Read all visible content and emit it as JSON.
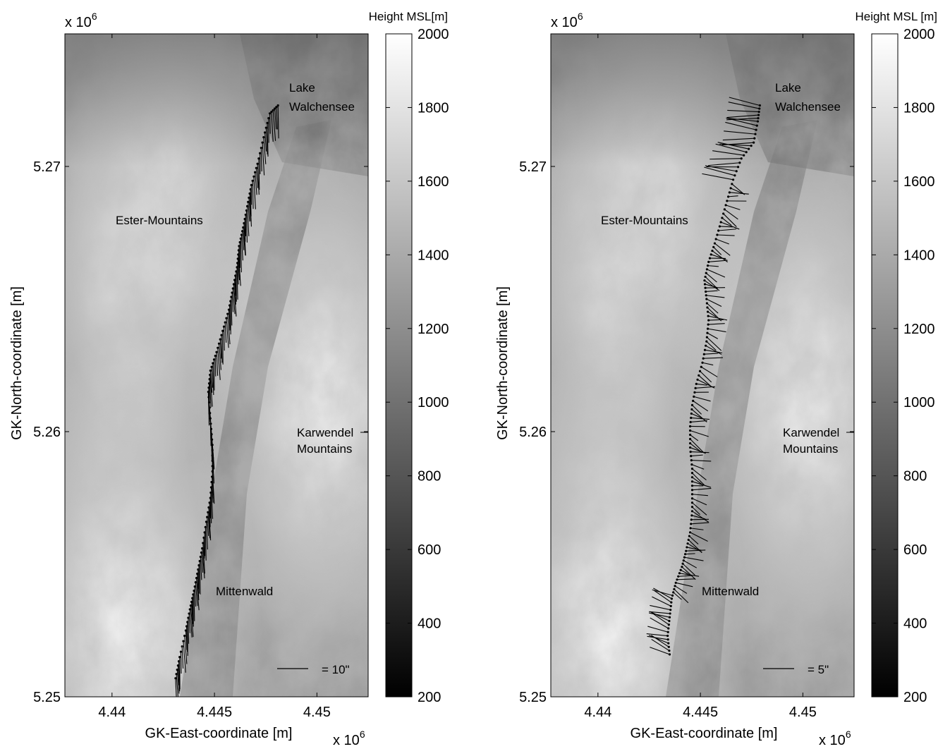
{
  "colorbar_title": "Height MSL[m]",
  "colorbar_title_right": "Height MSL [m]",
  "x_multiplier": "x 10",
  "multiplier_exp": "6",
  "chart_data": [
    {
      "type": "scatter",
      "title": "",
      "xlabel": "GK-East-coordinate [m]",
      "ylabel": "GK-North-coordinate [m]",
      "x_multiplier": "x 10^6",
      "y_multiplier": "x 10^6",
      "xlim": [
        4.4377,
        4.4525
      ],
      "ylim": [
        5.25,
        5.275
      ],
      "x_ticks": [
        4.44,
        4.445,
        4.45
      ],
      "x_tick_labels": [
        "4.44",
        "4.445",
        "4.45"
      ],
      "y_ticks": [
        5.25,
        5.26,
        5.27
      ],
      "y_tick_labels": [
        "5.25",
        "5.26",
        "5.27"
      ],
      "background": "grayscale digital elevation model",
      "colorbar": {
        "label": "Height MSL[m]",
        "min": 200,
        "max": 2000,
        "ticks": [
          200,
          400,
          600,
          800,
          1000,
          1200,
          1400,
          1600,
          1800,
          2000
        ],
        "tick_labels": [
          "200",
          "400",
          "600",
          "800",
          "1000",
          "1200",
          "1400",
          "1600",
          "1800",
          "2000"
        ]
      },
      "annotations": [
        "Lake",
        "Walchensee",
        "Ester-Mountains",
        "Karwendel",
        "Mountains",
        "Mittenwald"
      ],
      "scale_label": "= 10\"",
      "track": [
        [
          4.4431,
          5.2507
        ],
        [
          4.4433,
          5.2515
        ],
        [
          4.4436,
          5.2525
        ],
        [
          4.4438,
          5.2533
        ],
        [
          4.444,
          5.254
        ],
        [
          4.4442,
          5.2548
        ],
        [
          4.4444,
          5.2556
        ],
        [
          4.4446,
          5.2566
        ],
        [
          4.4448,
          5.2575
        ],
        [
          4.4449,
          5.2585
        ],
        [
          4.4449,
          5.2595
        ],
        [
          4.4448,
          5.2605
        ],
        [
          4.4447,
          5.2615
        ],
        [
          4.4448,
          5.2623
        ],
        [
          4.4451,
          5.263
        ],
        [
          4.4454,
          5.2638
        ],
        [
          4.4457,
          5.2646
        ],
        [
          4.4459,
          5.2654
        ],
        [
          4.4461,
          5.2662
        ],
        [
          4.4462,
          5.267
        ],
        [
          4.4464,
          5.2677
        ],
        [
          4.4466,
          5.2685
        ],
        [
          4.4468,
          5.2693
        ],
        [
          4.4471,
          5.2701
        ],
        [
          4.4474,
          5.2711
        ],
        [
          4.4477,
          5.272
        ],
        [
          4.4481,
          5.2723
        ]
      ],
      "vector_color": "#000000"
    },
    {
      "type": "scatter",
      "title": "",
      "xlabel": "GK-East-coordinate [m]",
      "ylabel": "GK-North-coordinate [m]",
      "x_multiplier": "x 10^6",
      "y_multiplier": "x 10^6",
      "xlim": [
        4.4377,
        4.4525
      ],
      "ylim": [
        5.25,
        5.275
      ],
      "x_ticks": [
        4.44,
        4.445,
        4.45
      ],
      "x_tick_labels": [
        "4.44",
        "4.445",
        "4.45"
      ],
      "y_ticks": [
        5.25,
        5.26,
        5.27
      ],
      "y_tick_labels": [
        "5.25",
        "5.26",
        "5.27"
      ],
      "background": "grayscale digital elevation model",
      "colorbar": {
        "label": "Height MSL [m]",
        "min": 200,
        "max": 2000,
        "ticks": [
          200,
          400,
          600,
          800,
          1000,
          1200,
          1400,
          1600,
          1800,
          2000
        ],
        "tick_labels": [
          "200",
          "400",
          "600",
          "800",
          "1000",
          "1200",
          "1400",
          "1600",
          "1800",
          "2000"
        ]
      },
      "annotations": [
        "Lake",
        "Walchensee",
        "Ester-Mountains",
        "Karwendel",
        "Mountains",
        "Mittenwald"
      ],
      "scale_label": "= 5\"",
      "track": [
        [
          4.4435,
          5.2516
        ],
        [
          4.4434,
          5.2523
        ],
        [
          4.4435,
          5.253
        ],
        [
          4.4436,
          5.2537
        ],
        [
          4.4438,
          5.2543
        ],
        [
          4.4441,
          5.2549
        ],
        [
          4.4443,
          5.2555
        ],
        [
          4.4445,
          5.2562
        ],
        [
          4.4446,
          5.257
        ],
        [
          4.4446,
          5.2578
        ],
        [
          4.4446,
          5.2586
        ],
        [
          4.4445,
          5.2594
        ],
        [
          4.4445,
          5.2602
        ],
        [
          4.4446,
          5.261
        ],
        [
          4.4448,
          5.2618
        ],
        [
          4.4451,
          5.2626
        ],
        [
          4.4453,
          5.2634
        ],
        [
          4.4454,
          5.2642
        ],
        [
          4.4453,
          5.265
        ],
        [
          4.4452,
          5.2657
        ],
        [
          4.4454,
          5.2664
        ],
        [
          4.4457,
          5.2671
        ],
        [
          4.446,
          5.2679
        ],
        [
          4.4463,
          5.2687
        ],
        [
          4.4466,
          5.2695
        ],
        [
          4.447,
          5.2703
        ],
        [
          4.4476,
          5.2709
        ],
        [
          4.4478,
          5.2717
        ],
        [
          4.4479,
          5.2723
        ]
      ],
      "vector_color": "#000000"
    }
  ]
}
